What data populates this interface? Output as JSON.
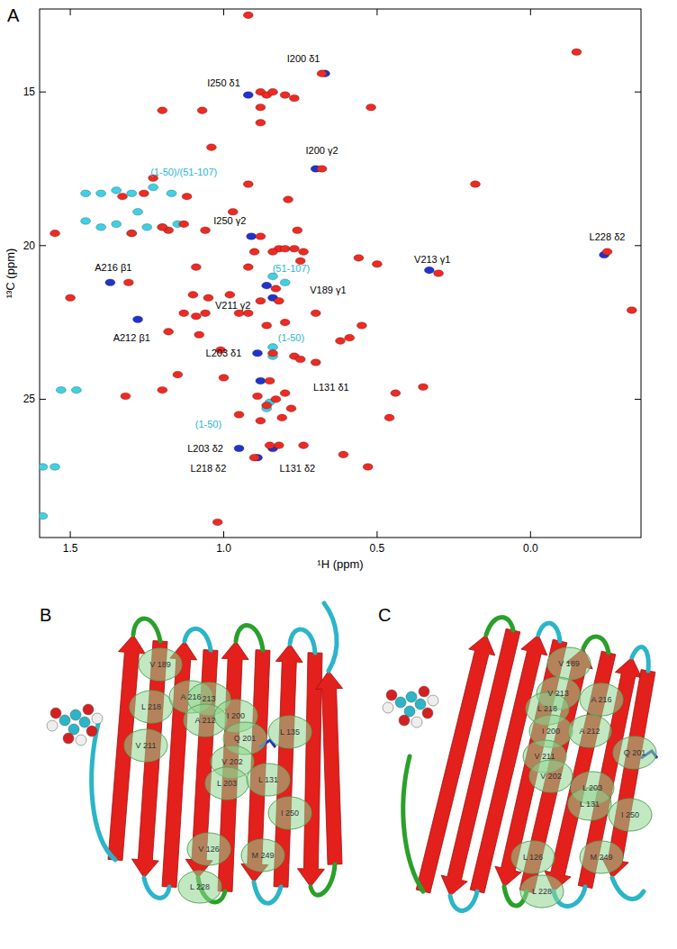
{
  "chart_data": {
    "type": "scatter",
    "panel_label": "A",
    "x_label": "¹H (ppm)",
    "y_label": "¹³C (ppm)",
    "xlim": [
      1.6,
      -0.36
    ],
    "ylim": [
      12.3,
      29.5
    ],
    "xticks": [
      1.5,
      {
        "value": 1.0,
        "label": "1.0"
      },
      0.5,
      {
        "value": 0.0,
        "label": "0.0"
      }
    ],
    "yticks": [
      15,
      20,
      25
    ],
    "marker": "ellipse",
    "series": [
      {
        "color": "#3fd0e4",
        "x": [
          1.45,
          1.4,
          1.35,
          1.3,
          1.23,
          1.17,
          1.45,
          1.4,
          1.35,
          1.3,
          1.25,
          1.2,
          1.15,
          1.48,
          1.53,
          0.8,
          0.84,
          0.84,
          0.84,
          0.85,
          0.86,
          1.59,
          1.55,
          1.59,
          1.28
        ],
        "values": [
          18.3,
          18.3,
          18.2,
          18.3,
          18.1,
          18.3,
          19.2,
          19.4,
          19.3,
          19.6,
          19.4,
          19.4,
          19.3,
          24.7,
          24.7,
          21.2,
          21.0,
          23.3,
          23.6,
          25.1,
          25.3,
          27.2,
          27.2,
          28.8,
          18.9
        ]
      },
      {
        "color": "#2233cc",
        "x": [
          0.92,
          0.67,
          0.7,
          0.91,
          1.37,
          0.86,
          0.84,
          1.28,
          0.89,
          0.88,
          0.95,
          0.89,
          0.33,
          -0.24,
          0.84
        ],
        "values": [
          15.1,
          14.4,
          17.5,
          19.7,
          21.2,
          21.3,
          21.7,
          22.4,
          23.5,
          24.4,
          26.6,
          26.9,
          20.8,
          20.3,
          26.6
        ]
      },
      {
        "color": "#ee2a22",
        "x": [
          0.92,
          -0.15,
          0.88,
          0.86,
          0.84,
          0.8,
          0.77,
          0.68,
          1.2,
          1.07,
          0.88,
          0.52,
          0.88,
          1.04,
          0.92,
          0.68,
          0.18,
          0.79,
          0.97,
          1.3,
          1.55,
          1.18,
          1.23,
          1.26,
          1.33,
          1.12,
          1.13,
          1.2,
          1.06,
          0.88,
          0.76,
          0.82,
          0.84,
          0.8,
          0.77,
          0.74,
          0.9,
          0.56,
          0.75,
          0.5,
          0.3,
          1.09,
          0.92,
          1.5,
          1.31,
          1.1,
          1.05,
          0.98,
          0.88,
          0.92,
          1.13,
          1.09,
          1.06,
          0.95,
          0.82,
          0.83,
          1.18,
          0.86,
          0.8,
          0.7,
          0.62,
          0.59,
          0.7,
          0.55,
          1.01,
          1.08,
          0.84,
          0.77,
          0.75,
          1.15,
          1.0,
          1.32,
          1.2,
          0.85,
          0.8,
          0.83,
          0.86,
          0.78,
          0.81,
          0.89,
          0.44,
          0.35,
          0.46,
          0.95,
          0.88,
          0.82,
          0.85,
          0.9,
          0.74,
          0.61,
          0.53,
          1.02,
          -0.25,
          -0.33
        ],
        "values": [
          12.5,
          13.7,
          15.0,
          15.1,
          15.0,
          15.1,
          15.2,
          14.4,
          15.6,
          15.6,
          15.5,
          15.5,
          16.0,
          16.8,
          18.0,
          17.5,
          18.0,
          18.5,
          18.9,
          19.6,
          19.6,
          19.5,
          17.8,
          18.3,
          18.4,
          18.4,
          19.3,
          19.4,
          19.5,
          19.7,
          19.5,
          20.1,
          20.2,
          20.1,
          20.1,
          20.2,
          20.2,
          20.4,
          20.5,
          20.6,
          20.9,
          20.7,
          20.7,
          21.7,
          21.2,
          21.6,
          21.7,
          21.6,
          21.8,
          22.2,
          22.2,
          22.3,
          22.2,
          22.2,
          21.8,
          21.4,
          22.8,
          22.6,
          22.5,
          22.2,
          23.1,
          23.0,
          23.8,
          22.6,
          23.4,
          22.9,
          23.5,
          23.6,
          23.7,
          24.2,
          24.3,
          24.9,
          24.7,
          24.4,
          24.8,
          25.0,
          25.2,
          25.3,
          25.6,
          24.9,
          24.8,
          24.6,
          25.6,
          25.5,
          25.7,
          26.5,
          26.5,
          26.9,
          26.5,
          26.8,
          27.2,
          29.0,
          20.2,
          22.1
        ]
      }
    ],
    "annotations": [
      {
        "text": "I200 δ1",
        "x": 0.74,
        "y": 13.9,
        "color": "#000000"
      },
      {
        "text": "I250 δ1",
        "x": 1.0,
        "y": 14.7,
        "color": "#000000"
      },
      {
        "text": "I200 γ2",
        "x": 0.68,
        "y": 16.9,
        "color": "#000000"
      },
      {
        "text": "(1-50)/(51-107)",
        "x": 1.13,
        "y": 17.6,
        "color": "#2ab4d4"
      },
      {
        "text": "I250 γ2",
        "x": 0.98,
        "y": 19.2,
        "color": "#000000"
      },
      {
        "text": "A216 β1",
        "x": 1.36,
        "y": 20.7,
        "color": "#000000"
      },
      {
        "text": "(51-107)",
        "x": 0.78,
        "y": 20.75,
        "color": "#2ab4d4"
      },
      {
        "text": "V189 γ1",
        "x": 0.66,
        "y": 21.45,
        "color": "#000000"
      },
      {
        "text": "V211 γ2",
        "x": 0.97,
        "y": 21.95,
        "color": "#000000"
      },
      {
        "text": "A212 β1",
        "x": 1.3,
        "y": 23.0,
        "color": "#000000"
      },
      {
        "text": "(1-50)",
        "x": 0.78,
        "y": 23.0,
        "color": "#2ab4d4"
      },
      {
        "text": "L203 δ1",
        "x": 1.0,
        "y": 23.5,
        "color": "#000000"
      },
      {
        "text": "L131 δ1",
        "x": 0.65,
        "y": 24.6,
        "color": "#000000"
      },
      {
        "text": "(1-50)",
        "x": 1.05,
        "y": 25.8,
        "color": "#2ab4d4"
      },
      {
        "text": "L203 δ2",
        "x": 1.06,
        "y": 26.6,
        "color": "#000000"
      },
      {
        "text": "L218 δ2",
        "x": 1.05,
        "y": 27.25,
        "color": "#000000"
      },
      {
        "text": "L131 δ2",
        "x": 0.76,
        "y": 27.25,
        "color": "#000000"
      },
      {
        "text": "V213 γ1",
        "x": 0.32,
        "y": 20.45,
        "color": "#000000"
      },
      {
        "text": "L228 δ2",
        "x": -0.25,
        "y": 19.7,
        "color": "#000000"
      }
    ]
  },
  "structures": [
    {
      "panel_label": "B",
      "residues": [
        "V 189",
        "L 218",
        "A 216",
        "213",
        "A 212",
        "I 200",
        "Q 201",
        "L 135",
        "V 211",
        "V 202",
        "L 203",
        "L 131",
        "I 250",
        "V 126",
        "M 249",
        "L 228"
      ]
    },
    {
      "panel_label": "C",
      "residues": [
        "V 189",
        "V 213",
        "A 216",
        "L 218",
        "I 200",
        "A 212",
        "Q 201",
        "V 211",
        "V 202",
        "L 203",
        "L 131",
        "I 250",
        "L 126",
        "M 249",
        "L 228"
      ]
    }
  ]
}
